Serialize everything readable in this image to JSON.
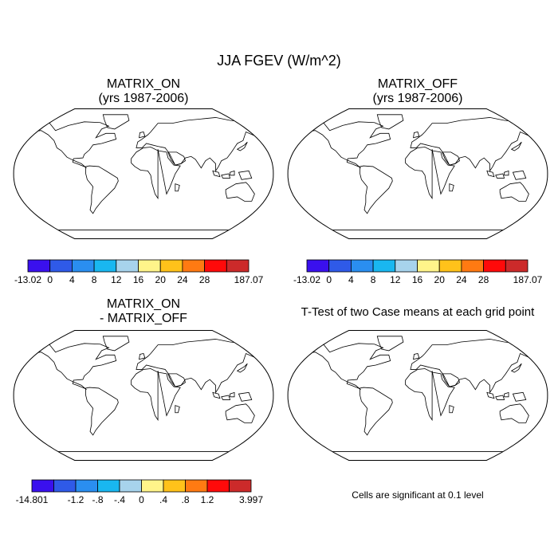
{
  "title": "JJA FGEV (W/m^2)",
  "colors": {
    "ocean": "#ffffff",
    "coast": "#000000",
    "abs_palette": [
      "#3a10ee",
      "#2f5ae8",
      "#2a8ef0",
      "#19b7f0",
      "#a7d3ec",
      "#fff48a",
      "#ffc21a",
      "#ff7a12",
      "#ff0a0a",
      "#cc2a2a"
    ],
    "diff_palette": [
      "#3a10ee",
      "#2f5ae8",
      "#2a8ef0",
      "#19b7f0",
      "#a7d3ec",
      "#fff48a",
      "#ffc21a",
      "#ff7a12",
      "#ff0a0a",
      "#cc2a2a"
    ],
    "signif": "#ff0000"
  },
  "chart_data": [
    {
      "type": "heatmap",
      "title": "MATRIX_ON",
      "subtitle": "(yrs 1987-2006)",
      "projection": "robinson",
      "colorbar": {
        "labels": [
          "-13.02",
          "0",
          "4",
          "8",
          "12",
          "16",
          "20",
          "24",
          "28",
          "187.07"
        ],
        "bounds": [
          -13.02,
          0,
          4,
          8,
          12,
          16,
          20,
          24,
          28,
          187.07
        ]
      }
    },
    {
      "type": "heatmap",
      "title": "MATRIX_OFF",
      "subtitle": "(yrs 1987-2006)",
      "projection": "robinson",
      "colorbar": {
        "labels": [
          "-13.02",
          "0",
          "4",
          "8",
          "12",
          "16",
          "20",
          "24",
          "28",
          "187.07"
        ],
        "bounds": [
          -13.02,
          0,
          4,
          8,
          12,
          16,
          20,
          24,
          28,
          187.07
        ]
      }
    },
    {
      "type": "heatmap",
      "title": "MATRIX_ON",
      "subtitle": "- MATRIX_OFF",
      "projection": "robinson",
      "colorbar": {
        "labels": [
          "-14.801",
          "-1.2",
          "-.8",
          "-.4",
          "0",
          ".4",
          ".8",
          "1.2",
          "3.997"
        ],
        "bounds": [
          -14.801,
          -1.2,
          -0.8,
          -0.4,
          0,
          0.4,
          0.8,
          1.2,
          3.997
        ]
      }
    },
    {
      "type": "heatmap",
      "title": "T-Test of two Case means at each grid point",
      "projection": "robinson",
      "note": "Cells are significant at 0.1 level"
    }
  ]
}
